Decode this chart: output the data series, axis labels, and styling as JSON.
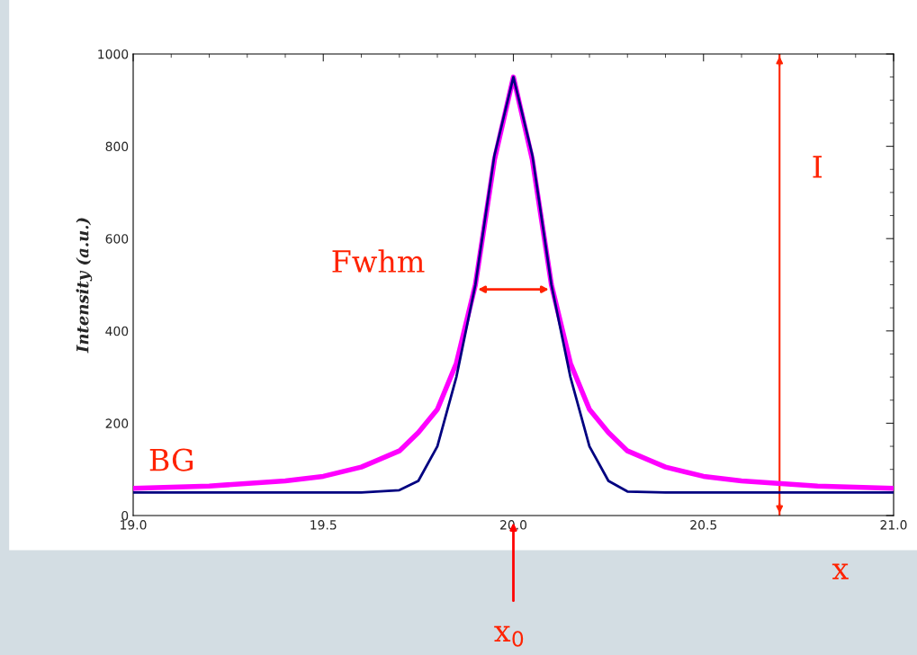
{
  "chart_data": {
    "type": "line",
    "ylabel": "Intensity (a.u.)",
    "xlim": [
      19.0,
      21.0
    ],
    "xticks": [
      {
        "value": 19.0,
        "label": "19.0"
      },
      19.5,
      {
        "value": 20.0,
        "label": "20.0"
      },
      20.5,
      {
        "value": 21.0,
        "label": "21.0"
      }
    ],
    "ylim": [
      0,
      1000
    ],
    "yticks": [
      0,
      200,
      400,
      600,
      800,
      1000
    ],
    "grid": false,
    "legend": false,
    "marker": "none",
    "line_style": "solid",
    "series": [
      {
        "color": "#000080",
        "x": [
          19.0,
          19.2,
          19.4,
          19.6,
          19.7,
          19.75,
          19.8,
          19.85,
          19.9,
          19.95,
          20.0,
          20.05,
          20.1,
          20.15,
          20.2,
          20.25,
          20.3,
          20.4,
          20.6,
          20.8,
          21.0
        ],
        "values": [
          50,
          50,
          50,
          50,
          55,
          75,
          150,
          300,
          500,
          780,
          950,
          780,
          500,
          300,
          150,
          75,
          52,
          50,
          50,
          50,
          50
        ]
      },
      {
        "color": "#ff00ff",
        "x": [
          19.0,
          19.2,
          19.4,
          19.5,
          19.6,
          19.7,
          19.75,
          19.8,
          19.85,
          19.9,
          19.95,
          20.0,
          20.05,
          20.1,
          20.15,
          20.2,
          20.25,
          20.3,
          20.4,
          20.5,
          20.6,
          20.8,
          21.0
        ],
        "values": [
          59,
          64,
          75,
          85,
          105,
          140,
          180,
          230,
          330,
          500,
          770,
          950,
          770,
          500,
          330,
          230,
          180,
          140,
          105,
          85,
          75,
          64,
          59
        ]
      }
    ],
    "ref_lines": [
      {
        "axis": "x",
        "value": 20.7,
        "label": "I",
        "color": "#ff2200"
      }
    ],
    "annotations": [
      "Fwhm",
      "BG",
      "x",
      "x$_{0}$"
    ]
  }
}
